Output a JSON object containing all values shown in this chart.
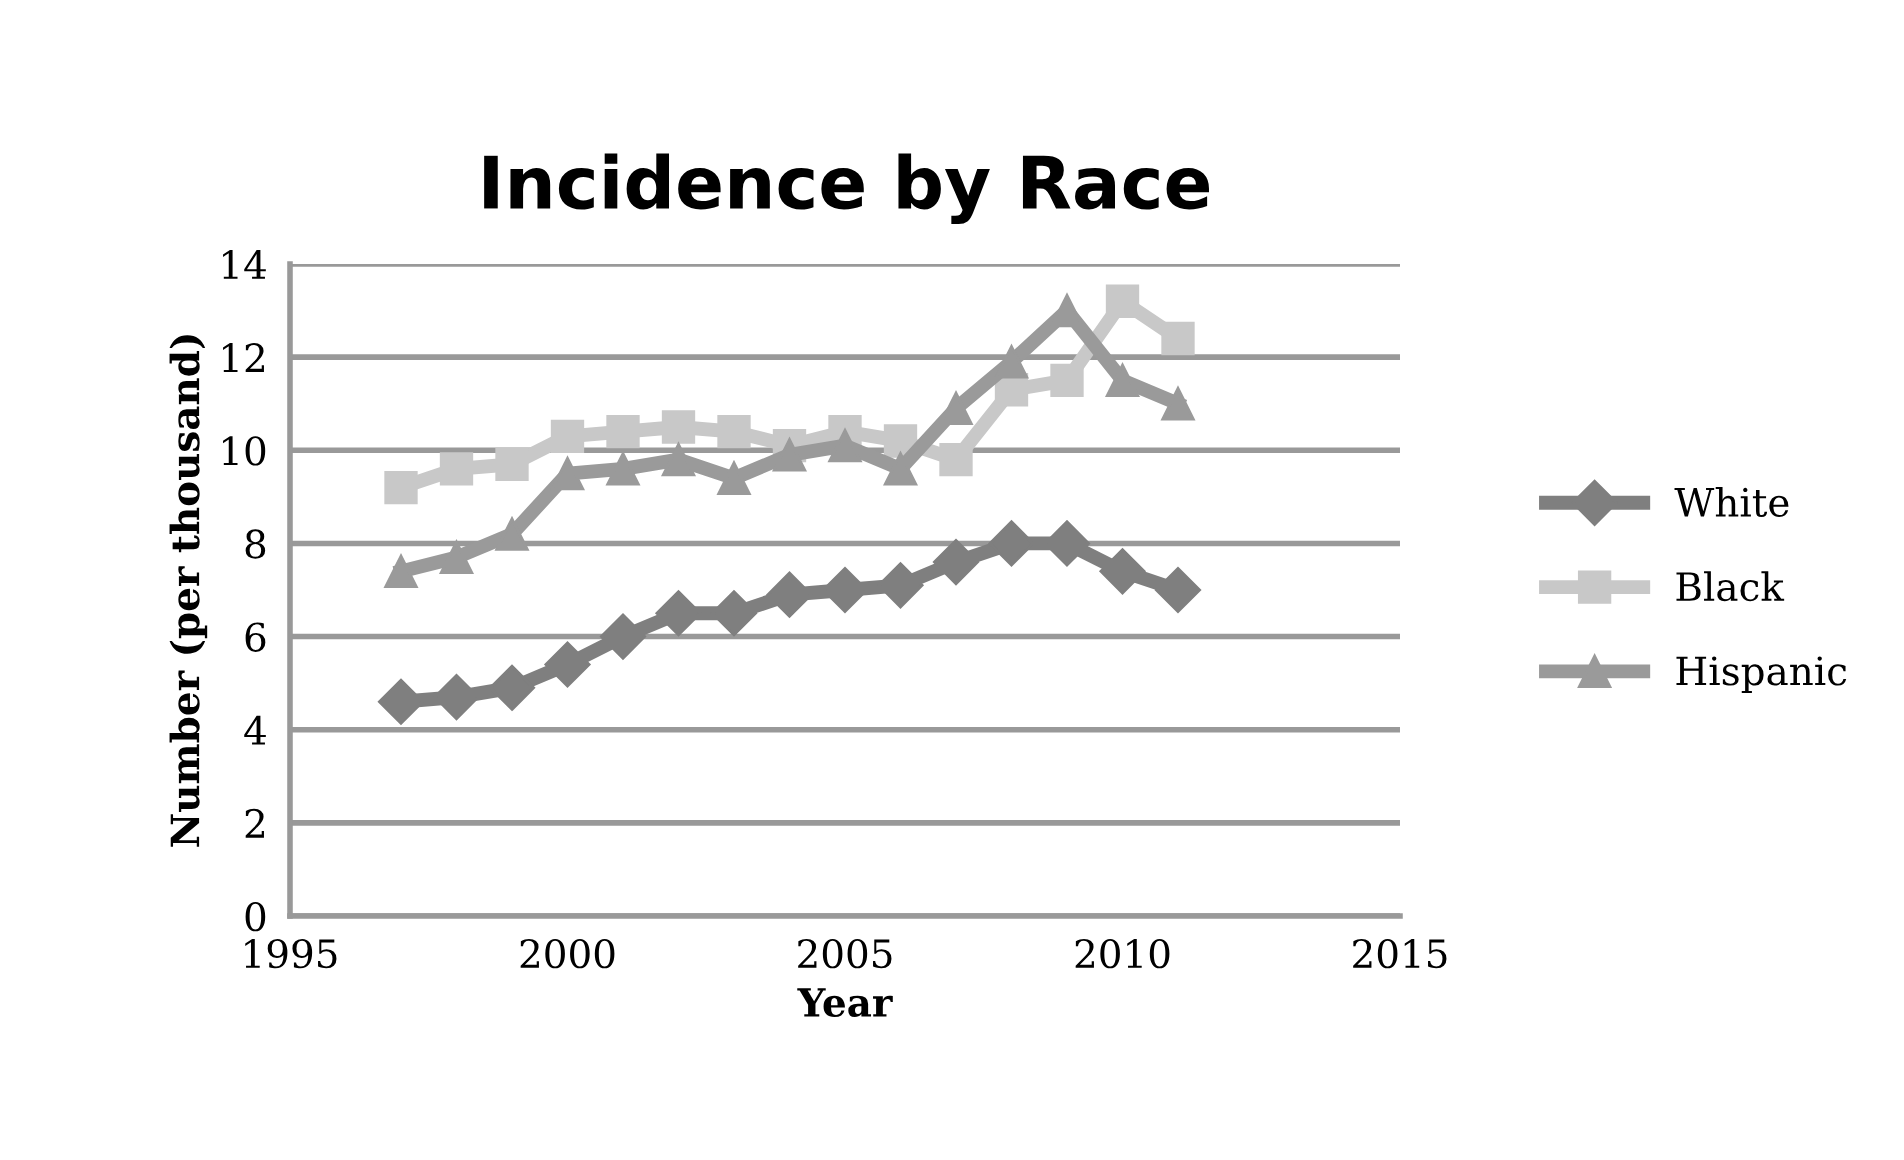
{
  "chart_data": {
    "type": "line",
    "title": "Incidence by Race",
    "xlabel": "Year",
    "ylabel": "Number (per thousand)",
    "x": [
      1997,
      1998,
      1999,
      2000,
      2001,
      2002,
      2003,
      2004,
      2005,
      2006,
      2007,
      2008,
      2009,
      2010,
      2011
    ],
    "series": [
      {
        "name": "White",
        "color": "#7f7f7f",
        "marker": "diamond",
        "values": [
          4.6,
          4.7,
          4.9,
          5.4,
          6.0,
          6.5,
          6.5,
          6.9,
          7.0,
          7.1,
          7.6,
          8.0,
          8.0,
          7.4,
          7.0
        ]
      },
      {
        "name": "Black",
        "color": "#c8c8c8",
        "marker": "square",
        "values": [
          9.2,
          9.6,
          9.7,
          10.3,
          10.4,
          10.5,
          10.4,
          10.1,
          10.4,
          10.2,
          9.8,
          11.3,
          11.5,
          13.2,
          12.4
        ]
      },
      {
        "name": "Hispanic",
        "color": "#9a9a9a",
        "marker": "triangle",
        "values": [
          7.4,
          7.7,
          8.2,
          9.5,
          9.6,
          9.8,
          9.4,
          9.9,
          10.1,
          9.6,
          10.9,
          11.9,
          13.0,
          11.5,
          11.0
        ]
      }
    ],
    "xlim": [
      1995,
      2015
    ],
    "xticks": [
      1995,
      2000,
      2005,
      2010,
      2015
    ],
    "ylim": [
      0,
      14
    ],
    "yticks": [
      0,
      2,
      4,
      6,
      8,
      10,
      12,
      14
    ],
    "grid": "y",
    "legend": "right"
  }
}
